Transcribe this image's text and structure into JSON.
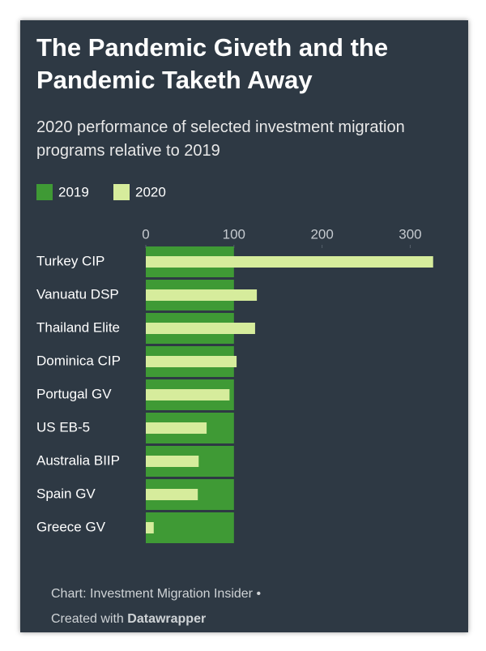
{
  "chart_data": {
    "type": "bar",
    "title": "The Pandemic Giveth and the Pandemic Taketh Away",
    "subtitle": "2020 performance of selected investment migration programs relative to 2019",
    "categories": [
      "Turkey CIP",
      "Vanuatu DSP",
      "Thailand Elite",
      "Dominica CIP",
      "Portugal GV",
      "US EB-5",
      "Australia BIIP",
      "Spain GV",
      "Greece GV"
    ],
    "series": [
      {
        "name": "2019",
        "color": "#3f9a35",
        "values": [
          100,
          100,
          100,
          100,
          100,
          100,
          100,
          100,
          100
        ]
      },
      {
        "name": "2020",
        "color": "#d6ec9c",
        "values": [
          326,
          126,
          124,
          103,
          95,
          69,
          60,
          59,
          9
        ]
      }
    ],
    "xlim": [
      0,
      329
    ],
    "xticks": [
      0,
      100,
      200,
      300
    ],
    "source": "Chart: Investment Migration Insider •",
    "credit_prefix": "Created with",
    "credit": "Datawrapper"
  }
}
